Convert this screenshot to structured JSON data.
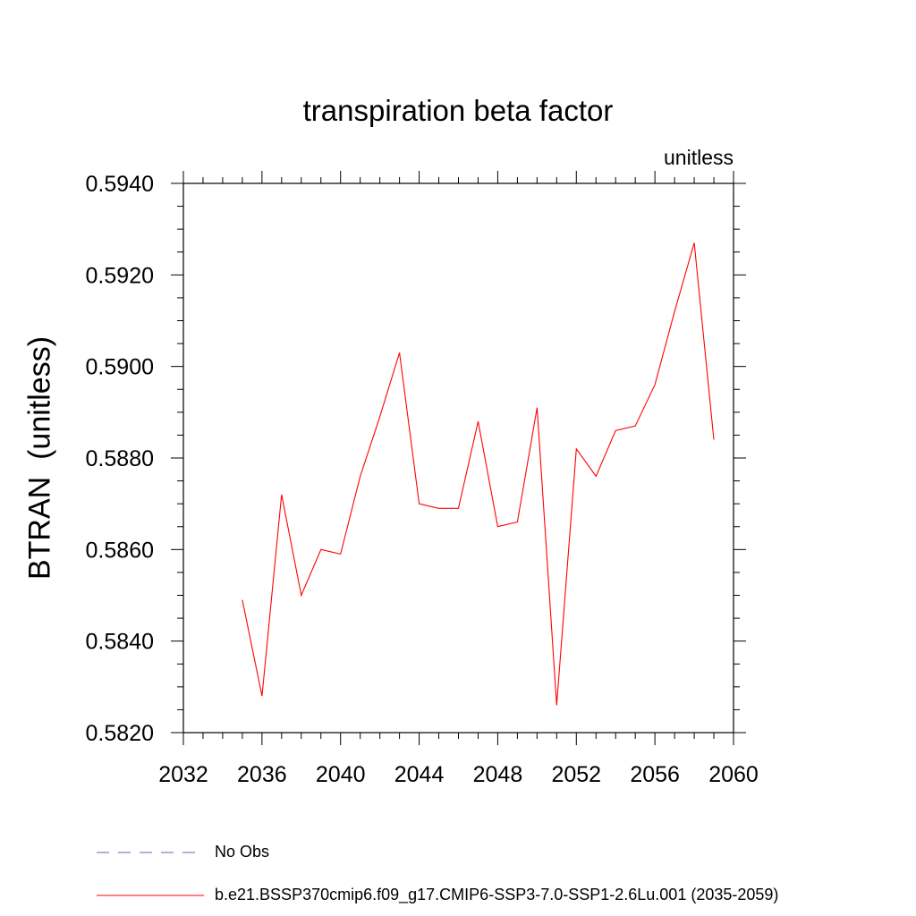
{
  "chart_data": {
    "type": "line",
    "title": "transpiration beta factor",
    "units_label": "unitless",
    "xlabel": "",
    "ylabel": "BTRAN  (unitless)",
    "xlim": [
      2032,
      2060
    ],
    "ylim": [
      0.582,
      0.594
    ],
    "x_ticks": [
      2032,
      2036,
      2040,
      2044,
      2048,
      2052,
      2056,
      2060
    ],
    "y_ticks": [
      "0.5820",
      "0.5840",
      "0.5860",
      "0.5880",
      "0.5900",
      "0.5920",
      "0.5940"
    ],
    "series": [
      {
        "name": "b.e21.BSSP370cmip6.f09_g17.CMIP6-SSP3-7.0-SSP1-2.6Lu.001 (2035-2059)",
        "color": "#ff0000",
        "x": [
          2035,
          2036,
          2037,
          2038,
          2039,
          2040,
          2041,
          2042,
          2043,
          2044,
          2045,
          2046,
          2047,
          2048,
          2049,
          2050,
          2051,
          2052,
          2053,
          2054,
          2055,
          2056,
          2057,
          2058,
          2059
        ],
        "values": [
          0.5849,
          0.5828,
          0.5872,
          0.585,
          0.586,
          0.5859,
          0.5876,
          0.5889,
          0.5903,
          0.587,
          0.5869,
          0.5869,
          0.5888,
          0.5865,
          0.5866,
          0.5891,
          0.5826,
          0.5882,
          0.5876,
          0.5886,
          0.5887,
          0.5896,
          0.5912,
          0.5927,
          0.5884
        ]
      }
    ],
    "legend": [
      {
        "label": "No Obs",
        "style": "dashed",
        "color": "#6b5fb0"
      },
      {
        "label": "b.e21.BSSP370cmip6.f09_g17.CMIP6-SSP3-7.0-SSP1-2.6Lu.001 (2035-2059)",
        "style": "solid",
        "color": "#ff0000"
      }
    ],
    "legend_position": "bottom",
    "grid": false
  }
}
